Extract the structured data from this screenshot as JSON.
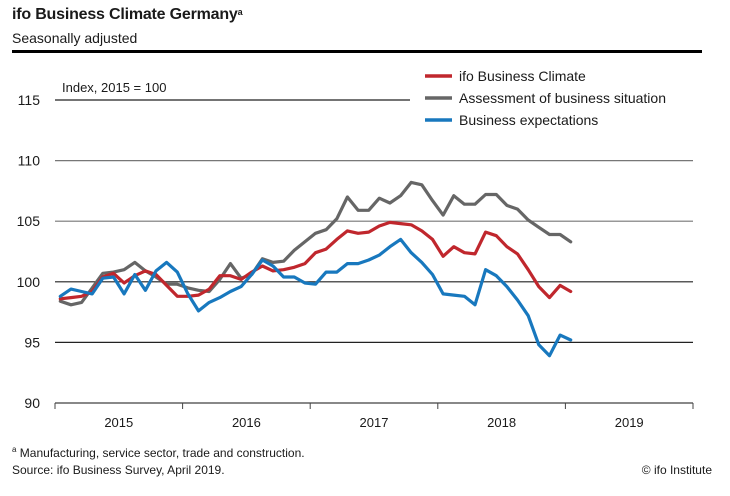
{
  "chart_data": {
    "type": "line",
    "title": "ifo Business Climate Germany",
    "title_superscript": "a",
    "subtitle": "Seasonally adjusted",
    "ylabel": "Index, 2015 = 100",
    "xlabel": "",
    "ylim": [
      90,
      115
    ],
    "yticks": [
      90,
      95,
      100,
      105,
      110,
      115
    ],
    "x_start": "2015-01",
    "x_period": "monthly",
    "x_tick_labels": [
      "2015",
      "2016",
      "2017",
      "2018",
      "2019"
    ],
    "grid": true,
    "legend_position": "top-right",
    "series": [
      {
        "name": "ifo Business Climate",
        "color": "#c0272d",
        "values": [
          98.6,
          98.7,
          98.8,
          99.2,
          100.4,
          100.7,
          99.9,
          100.5,
          100.9,
          100.6,
          99.7,
          98.8,
          98.8,
          98.9,
          99.4,
          100.5,
          100.5,
          100.2,
          100.8,
          101.3,
          100.9,
          101.0,
          101.2,
          101.5,
          102.4,
          102.7,
          103.5,
          104.2,
          104.0,
          104.1,
          104.6,
          104.9,
          104.8,
          104.7,
          104.2,
          103.5,
          102.1,
          102.9,
          102.4,
          102.3,
          104.1,
          103.8,
          102.9,
          102.3,
          101.0,
          99.6,
          98.7,
          99.7,
          99.2
        ]
      },
      {
        "name": "Assessment of business situation",
        "color": "#666666",
        "values": [
          98.4,
          98.1,
          98.3,
          99.5,
          100.7,
          100.8,
          101.0,
          101.6,
          100.9,
          100.4,
          99.8,
          99.8,
          99.5,
          99.3,
          99.2,
          100.2,
          101.5,
          100.3,
          100.6,
          101.9,
          101.6,
          101.7,
          102.6,
          103.3,
          104.0,
          104.3,
          105.2,
          107.0,
          105.9,
          105.9,
          106.9,
          106.5,
          107.1,
          108.2,
          108.0,
          106.7,
          105.5,
          107.1,
          106.4,
          106.4,
          107.2,
          107.2,
          106.3,
          106.0,
          105.1,
          104.5,
          103.9,
          103.9,
          103.3
        ]
      },
      {
        "name": "Business expectations",
        "color": "#1878be",
        "values": [
          98.8,
          99.4,
          99.2,
          99.0,
          100.3,
          100.4,
          99.0,
          100.6,
          99.3,
          100.9,
          101.6,
          100.8,
          99.0,
          97.6,
          98.3,
          98.7,
          99.2,
          99.6,
          100.6,
          101.8,
          101.3,
          100.4,
          100.4,
          99.9,
          99.8,
          100.8,
          100.8,
          101.5,
          101.5,
          101.8,
          102.2,
          102.9,
          103.5,
          102.4,
          101.6,
          100.6,
          99.0,
          98.9,
          98.8,
          98.1,
          101.0,
          100.5,
          99.6,
          98.5,
          97.2,
          94.8,
          93.9,
          95.6,
          95.2
        ]
      }
    ]
  },
  "footnote_marker": "a",
  "footnote": "Manufacturing, service sector, trade and construction.",
  "source": "Source: ifo Business Survey, April 2019.",
  "copyright": "© ifo Institute"
}
